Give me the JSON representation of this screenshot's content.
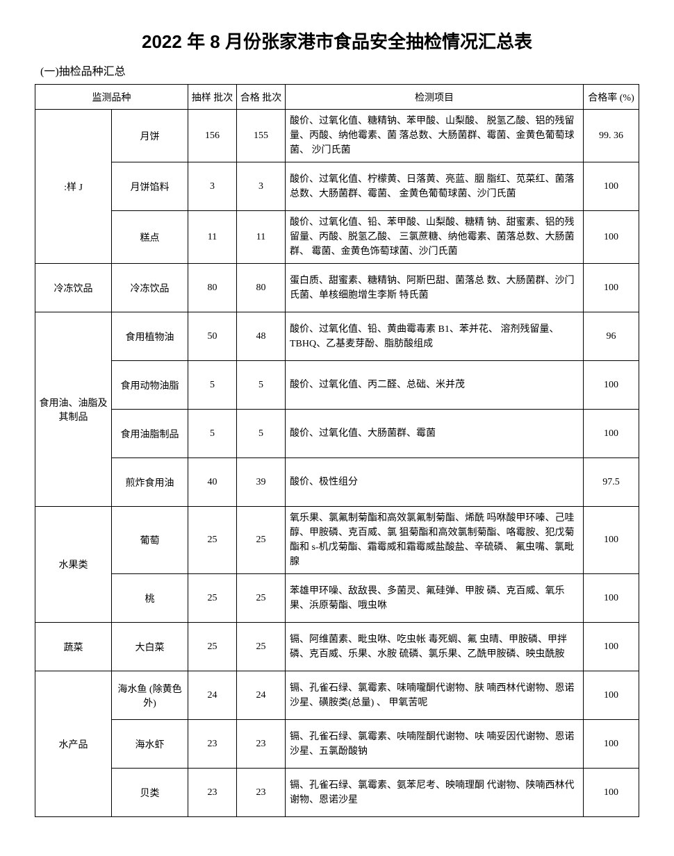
{
  "title": "2022 年 8 月份张家港市食品安全抽检情况汇总表",
  "subtitle": "(一)抽检品种汇总",
  "headers": {
    "category": "监测品种",
    "sample_batch": "抽样 批次",
    "pass_batch": "合格 批次",
    "test_items": "检测项目",
    "pass_rate": "合格率 (%)"
  },
  "groups": [
    {
      "cat1": ":样 J",
      "rows": [
        {
          "cat2": "月饼",
          "sample": "156",
          "pass": "155",
          "items": "酸价、过氧化值、糖精钠、苯甲酸、山梨酸、 脱氢乙酸、铝的残留量、丙酸、纳他霉素、菌 落总数、大肠菌群、霉菌、金黄色葡萄球菌、 沙门氏菌",
          "rate": "99. 36"
        },
        {
          "cat2": "月饼馅料",
          "sample": "3",
          "pass": "3",
          "items": "酸价、过氧化值、柠檬黄、日落黄、亮蓝、胭 脂红、苋菜红、菌落总数、大肠菌群、霉菌、 金黄色葡萄球菌、沙门氏菌",
          "rate": "100"
        },
        {
          "cat2": "糕点",
          "sample": "11",
          "pass": "11",
          "items": "酸价、过氧化值、铅、苯甲酸、山梨酸、糖精 钠、甜蜜素、铝的残留量、丙酸、脱氢乙酸、 三氯蔗糖、纳他霉素、菌落总数、大肠菌群、 霉菌、金黄色饰萄球菌、沙门氏菌",
          "rate": "100"
        }
      ]
    },
    {
      "cat1": "冷冻饮品",
      "rows": [
        {
          "cat2": "冷冻饮品",
          "sample": "80",
          "pass": "80",
          "items": "蛋白质、甜蜜素、糖精钠、阿斯巴甜、菌落总 数、大肠菌群、沙门氏菌、单核细胞增生李斯 特氏菌",
          "rate": "100"
        }
      ]
    },
    {
      "cat1": "食用油、油脂及 其制品",
      "rows": [
        {
          "cat2": "食用植物油",
          "sample": "50",
          "pass": "48",
          "items": "酸价、过氧化值、铅、黄曲霉毒素 B1、苯并花、 溶剂残留量、TBHQ、乙基麦芽酚、脂肪酸组成",
          "rate": "96"
        },
        {
          "cat2": "食用动物油脂",
          "sample": "5",
          "pass": "5",
          "items": "酸价、过氧化值、丙二醛、总础、米并茂",
          "rate": "100"
        },
        {
          "cat2": "食用油脂制品",
          "sample": "5",
          "pass": "5",
          "items": "酸价、过氧化值、大肠菌群、霉菌",
          "rate": "100"
        },
        {
          "cat2": "煎炸食用油",
          "sample": "40",
          "pass": "39",
          "items": "酸价、极性组分",
          "rate": "97.5"
        }
      ]
    },
    {
      "cat1": "水果类",
      "rows": [
        {
          "cat2": "葡萄",
          "sample": "25",
          "pass": "25",
          "items": "氧乐果、氯氟制菊酯和高效氯氟制菊酯、烯酰 吗咻酸甲环嗪、己哇醇、甲胺磷、克百威、氯 狙菊酯和高效氯制菊酯、咯霉胺、犯戊菊酯和 s-机戊菊酯、霜霉威和霜霉威盐酸盐、辛硫磷、 氟虫嘴、氯毗腺",
          "rate": "100"
        },
        {
          "cat2": "桃",
          "sample": "25",
          "pass": "25",
          "items": "苯雄甲环噪、敌敌畏、多菌灵、氟硅弹、甲胺 磷、克百威、氧乐果、浜原菊酯、哦虫咻",
          "rate": "100"
        }
      ]
    },
    {
      "cat1": "蔬菜",
      "rows": [
        {
          "cat2": "大白菜",
          "sample": "25",
          "pass": "25",
          "items": "镉、阿维菌素、毗虫咻、吃虫帐 毒死蜩、氟 虫晴、甲胺磷、甲拌磷、克百威、乐果、水胺 硫磷、氯乐果、乙酰甲胺磷、映虫酰胺",
          "rate": "100"
        }
      ]
    },
    {
      "cat1": "水产品",
      "rows": [
        {
          "cat2": "海水鱼 (除黄色外)",
          "sample": "24",
          "pass": "24",
          "items": "镉、孔雀石绿、氯霉素、味喃嚨酮代谢物、肤 喃西林代谢物、恩诺沙星、磺胺类(总量) 、 甲氧苦呢",
          "rate": "100"
        },
        {
          "cat2": "海水虾",
          "sample": "23",
          "pass": "23",
          "items": "镉、孔雀石绿、氯霉素、呋喃陛酮代谢物、呋 喃妥因代谢物、恩诺沙星、五氯酚酸钠",
          "rate": "100"
        },
        {
          "cat2": "贝类",
          "sample": "23",
          "pass": "23",
          "items": "镉、孔雀石绿、氯霉素、氨苯尼考、映喃理酮 代谢物、陕喃西林代谢物、恩诺沙星",
          "rate": "100"
        }
      ]
    }
  ]
}
